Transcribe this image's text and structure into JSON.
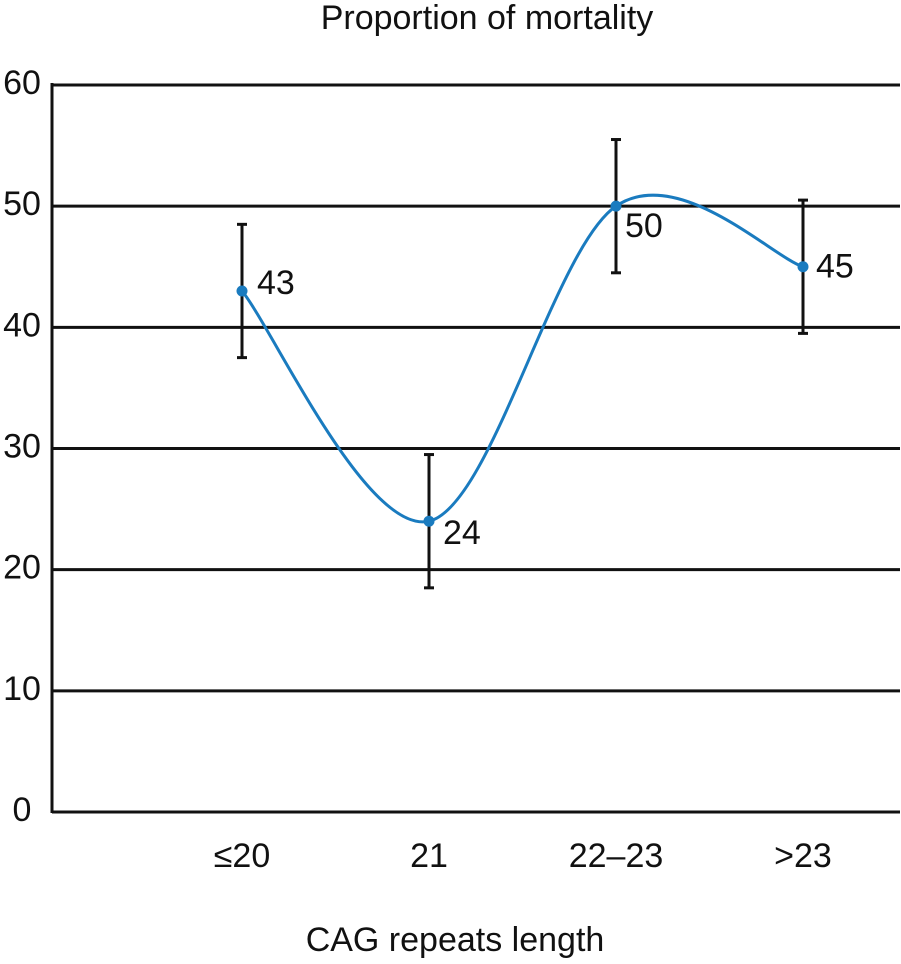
{
  "chart_data": {
    "type": "line",
    "title": "Proportion of mortality",
    "x_label": "CAG repeats length",
    "categories": [
      "≤20",
      "21",
      "22–23",
      ">23"
    ],
    "values": [
      43,
      24,
      50,
      45
    ],
    "errors": [
      5.5,
      5.5,
      5.5,
      5.5
    ],
    "color": "#1a7bbf",
    "smooth": true,
    "ylim": [
      0,
      60
    ],
    "yticks": [
      0,
      10,
      20,
      30,
      40,
      50,
      60
    ],
    "grid": true
  }
}
